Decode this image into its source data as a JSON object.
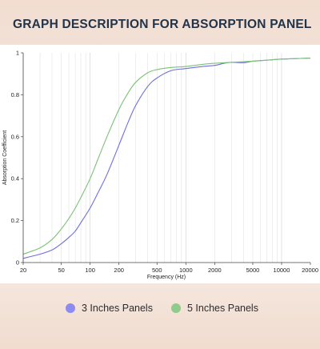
{
  "header": {
    "title": "GRAPH DESCRIPTION FOR ABSORPTION PANEL"
  },
  "legend": {
    "items": [
      {
        "label": "3 Inches Panels",
        "color": "#8c8cf0"
      },
      {
        "label": "5 Inches Panels",
        "color": "#8fcb8a"
      }
    ]
  },
  "chart_data": {
    "type": "line",
    "xlabel": "Frequency (Hz)",
    "ylabel": "Absorption Coefficient",
    "x_scale": "log",
    "xlim": [
      20,
      20000
    ],
    "ylim": [
      0,
      1
    ],
    "x_ticks": [
      20,
      50,
      100,
      200,
      500,
      1000,
      2000,
      5000,
      10000,
      20000
    ],
    "x_tick_labels": [
      "20",
      "50",
      "100",
      "200",
      "500",
      "1000",
      "2000",
      "5000",
      "10000",
      "20000"
    ],
    "y_ticks": [
      0,
      0.2,
      0.4,
      0.6,
      0.8,
      1
    ],
    "y_tick_labels": [
      "0",
      "0.2",
      "0.4",
      "0.6",
      "0.8",
      "1"
    ],
    "grid": "vertical",
    "series": [
      {
        "name": "3 Inches Panels",
        "color": "#6f6fe0",
        "x": [
          20,
          30,
          40,
          50,
          60,
          70,
          80,
          100,
          120,
          150,
          200,
          250,
          300,
          400,
          500,
          700,
          1000,
          1500,
          2000,
          2500,
          3000,
          4000,
          5000,
          7000,
          10000,
          15000,
          20000
        ],
        "y": [
          0.02,
          0.04,
          0.06,
          0.09,
          0.12,
          0.15,
          0.19,
          0.26,
          0.33,
          0.42,
          0.56,
          0.67,
          0.75,
          0.84,
          0.88,
          0.915,
          0.925,
          0.935,
          0.94,
          0.95,
          0.955,
          0.953,
          0.96,
          0.965,
          0.97,
          0.973,
          0.975
        ]
      },
      {
        "name": "5 Inches Panels",
        "color": "#7cc276",
        "x": [
          20,
          30,
          40,
          50,
          60,
          70,
          80,
          100,
          120,
          150,
          200,
          250,
          300,
          400,
          500,
          700,
          1000,
          1500,
          2000,
          3000,
          5000,
          7000,
          10000,
          15000,
          20000
        ],
        "y": [
          0.04,
          0.07,
          0.11,
          0.16,
          0.21,
          0.26,
          0.31,
          0.4,
          0.49,
          0.6,
          0.73,
          0.81,
          0.86,
          0.905,
          0.92,
          0.93,
          0.935,
          0.945,
          0.95,
          0.955,
          0.96,
          0.965,
          0.97,
          0.973,
          0.975
        ]
      }
    ]
  }
}
